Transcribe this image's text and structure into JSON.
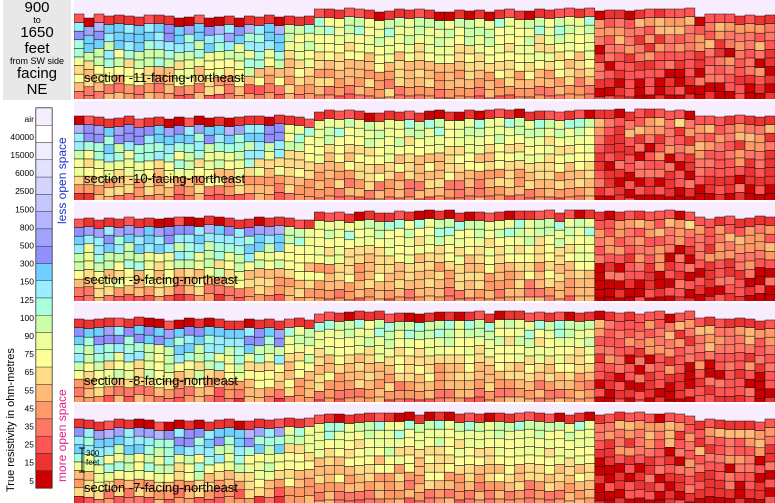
{
  "header": {
    "start": "900",
    "to": "to",
    "end": "1650",
    "unit": "feet",
    "from": "from SW side",
    "facing": "facing",
    "direction": "NE"
  },
  "legend": {
    "axis_label": "True resistivity in ohm-metres",
    "less_label": "less open space",
    "more_label": "more open space",
    "less_color": "#2233cc",
    "more_color": "#e0208a",
    "ticks": [
      "air",
      "40000",
      "15000",
      "6000",
      "2500",
      "1500",
      "800",
      "500",
      "300",
      "150",
      "125",
      "100",
      "90",
      "75",
      "65",
      "55",
      "45",
      "35",
      "25",
      "15",
      "5"
    ],
    "colors": [
      "#f8ecff",
      "#ffffff",
      "#eeeeff",
      "#e2e2ff",
      "#d4d4ff",
      "#c6c6ff",
      "#b4b4ff",
      "#a2a2ff",
      "#9090ff",
      "#70d0ff",
      "#99eeff",
      "#aaffdd",
      "#ccffaa",
      "#eeff99",
      "#ffff99",
      "#ffdd88",
      "#ffbb77",
      "#ff9966",
      "#ff7766",
      "#ff5555",
      "#ee3333",
      "#cc0000"
    ]
  },
  "scale": {
    "label": "300",
    "unit": "feet"
  },
  "sections": [
    {
      "label": "section -11-facing-northeast"
    },
    {
      "label": "section -10-facing-northeast"
    },
    {
      "label": "section -9-facing-northeast"
    },
    {
      "label": "section -8-facing-northeast"
    },
    {
      "label": "section -7-facing-northeast"
    }
  ]
}
